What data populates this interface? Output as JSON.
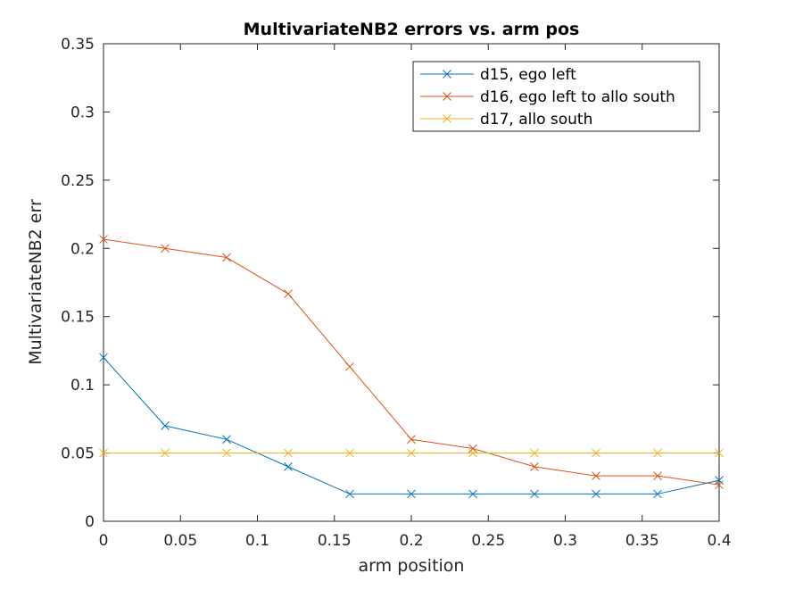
{
  "chart_data": {
    "type": "line",
    "title": "MultivariateNB2 errors vs. arm pos",
    "xlabel": "arm position",
    "ylabel": "MultivariateNB2 err",
    "xlim": [
      0,
      0.4
    ],
    "ylim": [
      0,
      0.35
    ],
    "xticks": [
      "0",
      "0.05",
      "0.1",
      "0.15",
      "0.2",
      "0.25",
      "0.3",
      "0.35",
      "0.4"
    ],
    "yticks": [
      "0",
      "0.05",
      "0.1",
      "0.15",
      "0.2",
      "0.25",
      "0.3",
      "0.35"
    ],
    "grid": false,
    "legend_position": "top-right",
    "marker": "x",
    "x": [
      0,
      0.04,
      0.08,
      0.12,
      0.16,
      0.2,
      0.24,
      0.28,
      0.32,
      0.36,
      0.4
    ],
    "series": [
      {
        "name": "d15, ego left",
        "color": "#0072BD",
        "values": [
          0.12,
          0.07,
          0.06,
          0.04,
          0.02,
          0.02,
          0.02,
          0.02,
          0.02,
          0.02,
          0.03
        ]
      },
      {
        "name": "d16, ego left to allo south",
        "color": "#D95319",
        "values": [
          0.2067,
          0.2,
          0.1933,
          0.1667,
          0.1133,
          0.06,
          0.0533,
          0.04,
          0.0333,
          0.0333,
          0.0267
        ]
      },
      {
        "name": "d17, allo south",
        "color": "#EDB120",
        "values": [
          0.05,
          0.05,
          0.05,
          0.05,
          0.05,
          0.05,
          0.05,
          0.05,
          0.05,
          0.05,
          0.05
        ]
      }
    ]
  }
}
